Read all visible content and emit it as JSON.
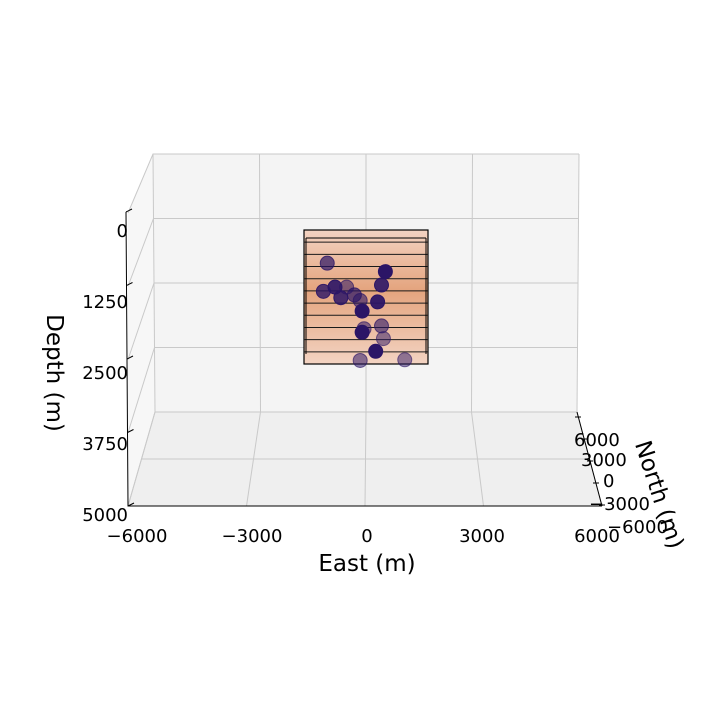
{
  "chart_data": {
    "type": "scatter3d",
    "title": "",
    "xlabel": "East (m)",
    "ylabel": "North (m)",
    "zlabel": "Depth (m)",
    "xlim": [
      -6000,
      6000
    ],
    "ylim": [
      -6000,
      6000
    ],
    "zlim": [
      0,
      5000
    ],
    "z_inverted": true,
    "grid": true,
    "x_ticks": [
      "−6000",
      "−3000",
      "0",
      "3000",
      "6000"
    ],
    "y_ticks": [
      "6000",
      "3000",
      "0",
      "−3000",
      "−6000"
    ],
    "z_ticks": [
      "0",
      "1250",
      "2500",
      "3750",
      "5000"
    ],
    "x_tick_values": [
      -6000,
      -3000,
      0,
      3000,
      6000
    ],
    "y_tick_values": [
      6000,
      3000,
      0,
      -3000,
      -6000
    ],
    "z_tick_values": [
      0,
      1250,
      2500,
      3750,
      5000
    ],
    "box": {
      "x_range": [
        -1600,
        1600
      ],
      "y_range": [
        -1600,
        1600
      ],
      "z_range": [
        0,
        1900
      ],
      "layers": 11,
      "color_top": "#f3d3c2",
      "color_bottom": "#e4a47e"
    },
    "points": [
      {
        "x": -1000,
        "z": 470,
        "alpha": 0.7
      },
      {
        "x": 500,
        "z": 590,
        "alpha": 1.0
      },
      {
        "x": 400,
        "z": 780,
        "alpha": 0.9
      },
      {
        "x": -800,
        "z": 810,
        "alpha": 0.9
      },
      {
        "x": -1100,
        "z": 870,
        "alpha": 0.8
      },
      {
        "x": -500,
        "z": 810,
        "alpha": 0.55
      },
      {
        "x": -300,
        "z": 920,
        "alpha": 0.7
      },
      {
        "x": -650,
        "z": 960,
        "alpha": 0.85
      },
      {
        "x": -150,
        "z": 1000,
        "alpha": 0.6
      },
      {
        "x": 300,
        "z": 1020,
        "alpha": 0.95
      },
      {
        "x": -100,
        "z": 1150,
        "alpha": 1.0
      },
      {
        "x": 400,
        "z": 1360,
        "alpha": 0.6
      },
      {
        "x": -50,
        "z": 1400,
        "alpha": 0.55
      },
      {
        "x": -100,
        "z": 1450,
        "alpha": 1.0
      },
      {
        "x": 450,
        "z": 1540,
        "alpha": 0.5
      },
      {
        "x": 250,
        "z": 1720,
        "alpha": 1.0
      },
      {
        "x": -150,
        "z": 1850,
        "alpha": 0.55
      },
      {
        "x": 1000,
        "z": 1840,
        "alpha": 0.5
      }
    ],
    "point_color": "#2b1566",
    "colors": {
      "pane": "#f4f4f4",
      "grid": "#c9c9c9",
      "edge": "#000000"
    }
  }
}
